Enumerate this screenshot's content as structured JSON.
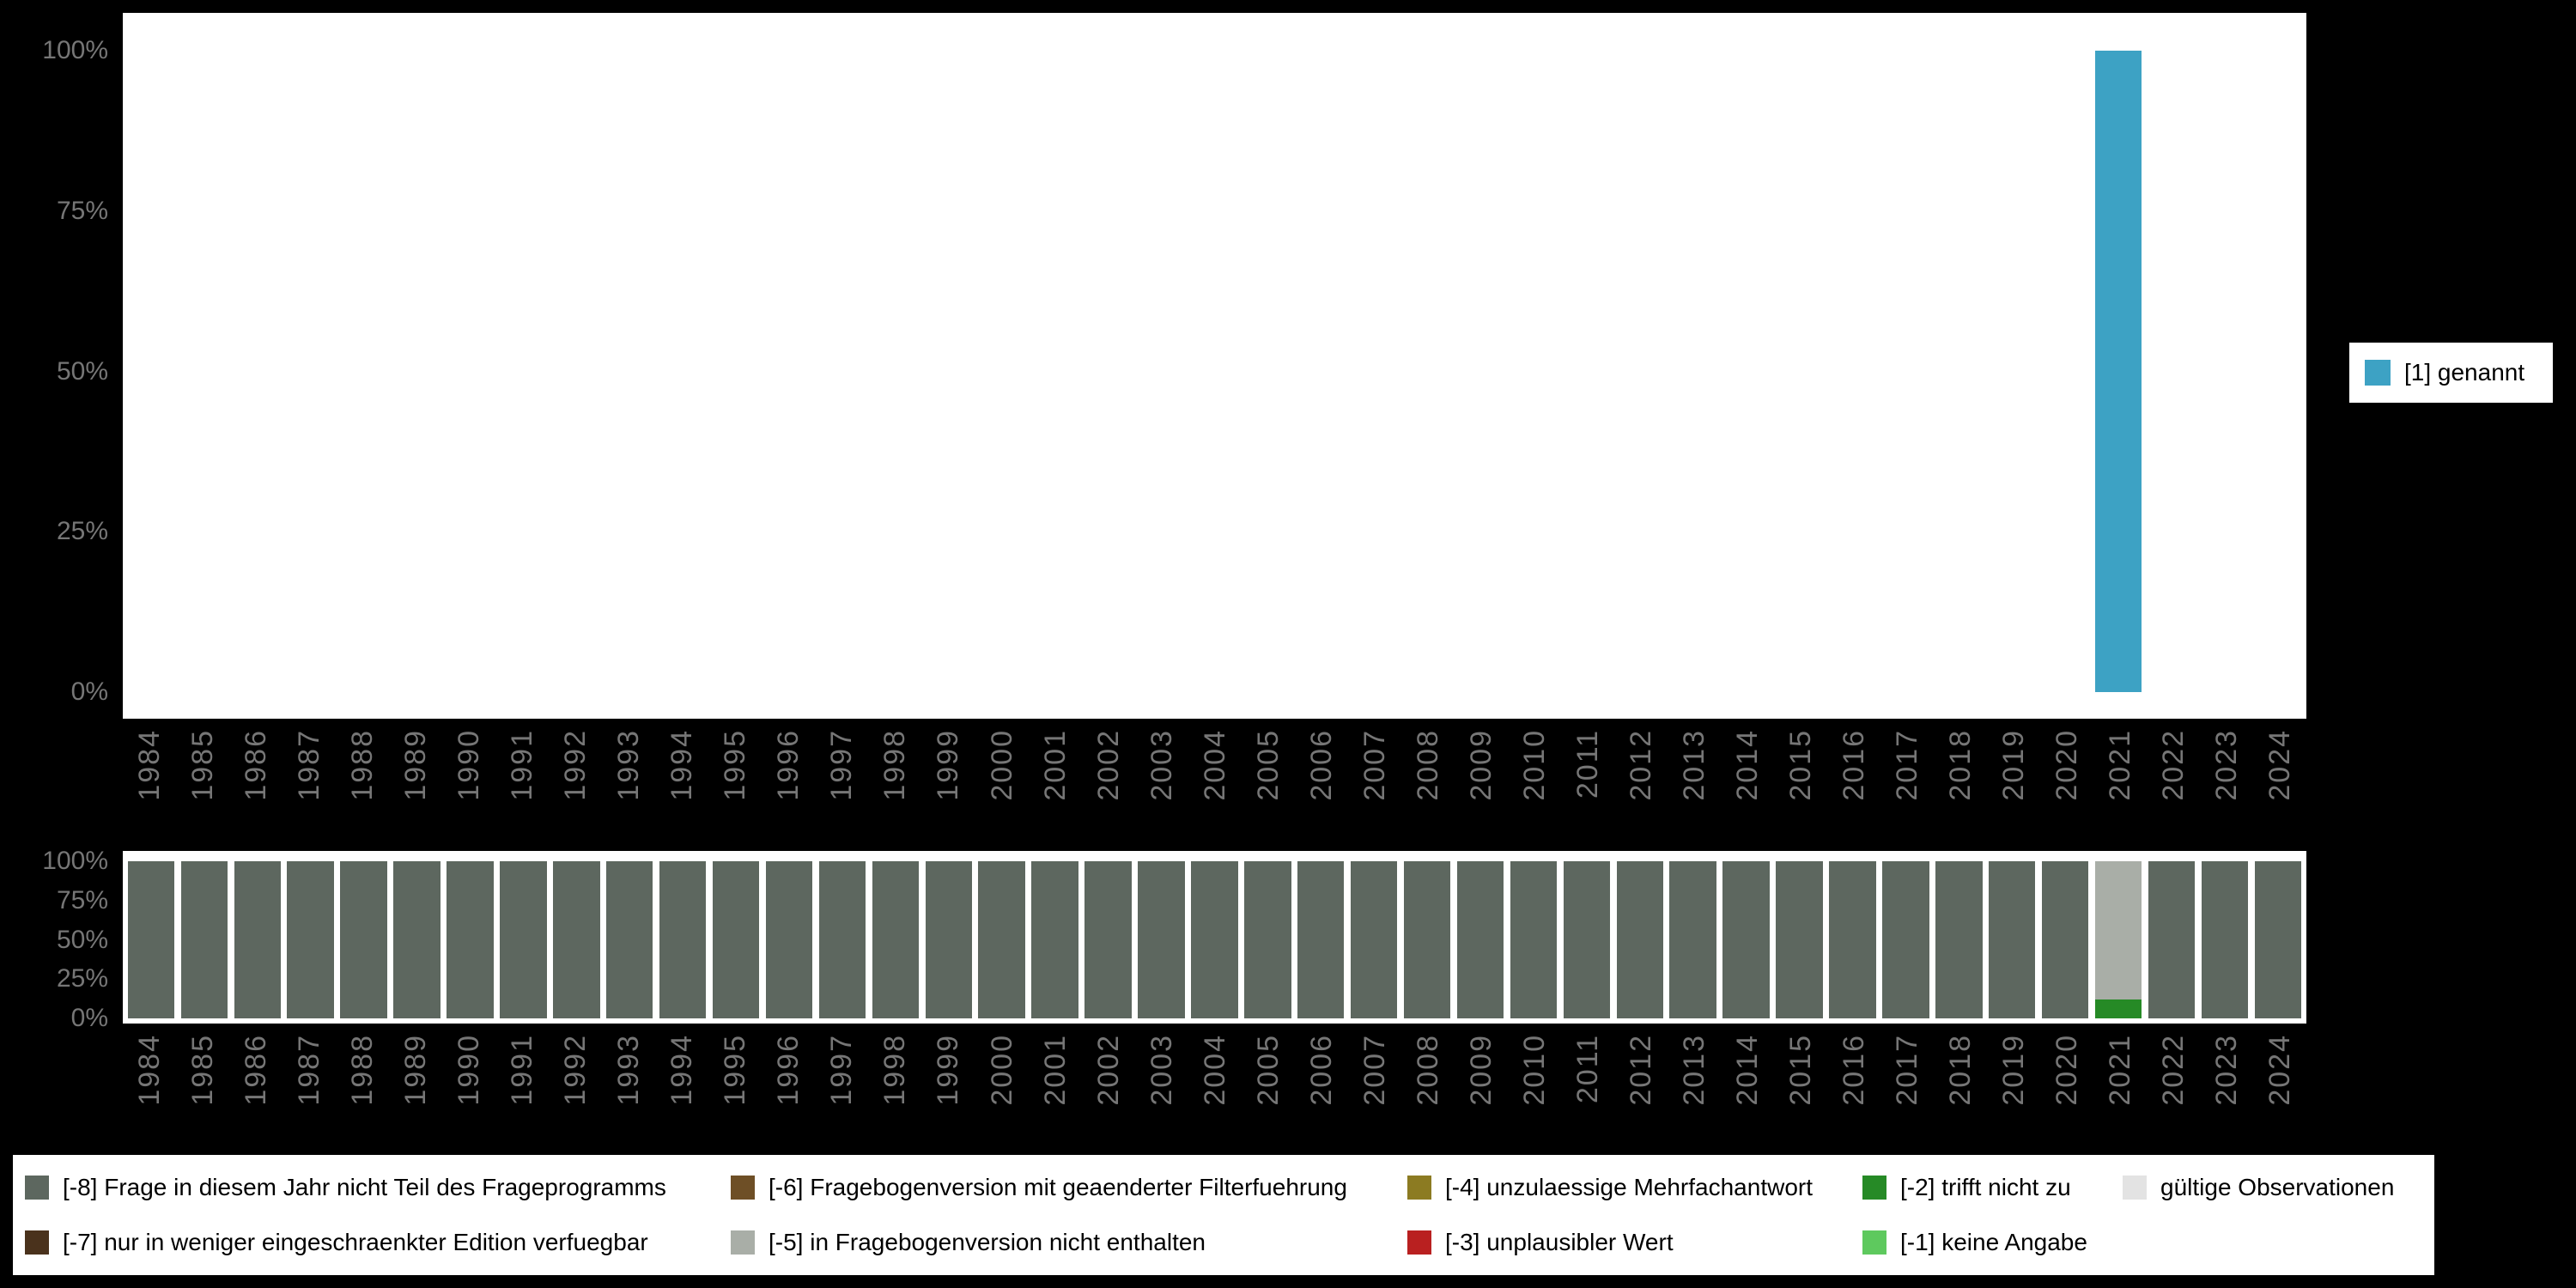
{
  "colors": {
    "background": "#000000",
    "panel_background": "#ffffff",
    "axis_text": "#767676",
    "bar_teal": "#3da2c4"
  },
  "chart_data": [
    {
      "type": "bar",
      "title": "",
      "xlabel": "",
      "ylabel": "",
      "ylim": [
        0,
        100
      ],
      "grid": false,
      "legend_position": "right",
      "yticks": [
        "100%",
        "75%",
        "50%",
        "25%",
        "0%"
      ],
      "categories": [
        "1984",
        "1985",
        "1986",
        "1987",
        "1988",
        "1989",
        "1990",
        "1991",
        "1992",
        "1993",
        "1994",
        "1995",
        "1996",
        "1997",
        "1998",
        "1999",
        "2000",
        "2001",
        "2002",
        "2003",
        "2004",
        "2005",
        "2006",
        "2007",
        "2008",
        "2009",
        "2010",
        "2011",
        "2012",
        "2013",
        "2014",
        "2015",
        "2016",
        "2017",
        "2018",
        "2019",
        "2020",
        "2021",
        "2022",
        "2023",
        "2024"
      ],
      "series": [
        {
          "name": "[1] genannt",
          "color": "#3da2c4",
          "values": [
            0,
            0,
            0,
            0,
            0,
            0,
            0,
            0,
            0,
            0,
            0,
            0,
            0,
            0,
            0,
            0,
            0,
            0,
            0,
            0,
            0,
            0,
            0,
            0,
            0,
            0,
            0,
            0,
            0,
            0,
            0,
            0,
            0,
            0,
            0,
            0,
            0,
            100,
            0,
            0,
            0
          ]
        }
      ]
    },
    {
      "type": "stacked-bar",
      "title": "",
      "xlabel": "",
      "ylabel": "",
      "ylim": [
        0,
        100
      ],
      "grid": false,
      "legend_position": "bottom",
      "yticks": [
        "100%",
        "75%",
        "50%",
        "25%",
        "0%"
      ],
      "categories": [
        "1984",
        "1985",
        "1986",
        "1987",
        "1988",
        "1989",
        "1990",
        "1991",
        "1992",
        "1993",
        "1994",
        "1995",
        "1996",
        "1997",
        "1998",
        "1999",
        "2000",
        "2001",
        "2002",
        "2003",
        "2004",
        "2005",
        "2006",
        "2007",
        "2008",
        "2009",
        "2010",
        "2011",
        "2012",
        "2013",
        "2014",
        "2015",
        "2016",
        "2017",
        "2018",
        "2019",
        "2020",
        "2021",
        "2022",
        "2023",
        "2024"
      ],
      "series": [
        {
          "name": "[-8] Frage in diesem Jahr nicht Teil des Frageprogramms",
          "color": "#5d675f",
          "values": [
            100,
            100,
            100,
            100,
            100,
            100,
            100,
            100,
            100,
            100,
            100,
            100,
            100,
            100,
            100,
            100,
            100,
            100,
            100,
            100,
            100,
            100,
            100,
            100,
            100,
            100,
            100,
            100,
            100,
            100,
            100,
            100,
            100,
            100,
            100,
            100,
            100,
            0,
            100,
            100,
            100
          ]
        },
        {
          "name": "[-5] in Fragebogenversion nicht enthalten",
          "color": "#a9aea7",
          "values": [
            0,
            0,
            0,
            0,
            0,
            0,
            0,
            0,
            0,
            0,
            0,
            0,
            0,
            0,
            0,
            0,
            0,
            0,
            0,
            0,
            0,
            0,
            0,
            0,
            0,
            0,
            0,
            0,
            0,
            0,
            0,
            0,
            0,
            0,
            0,
            0,
            0,
            88,
            0,
            0,
            0
          ]
        },
        {
          "name": "[-2] trifft nicht zu",
          "color": "#268a26",
          "values": [
            0,
            0,
            0,
            0,
            0,
            0,
            0,
            0,
            0,
            0,
            0,
            0,
            0,
            0,
            0,
            0,
            0,
            0,
            0,
            0,
            0,
            0,
            0,
            0,
            0,
            0,
            0,
            0,
            0,
            0,
            0,
            0,
            0,
            0,
            0,
            0,
            0,
            12,
            0,
            0,
            0
          ]
        }
      ]
    }
  ],
  "legend_right": {
    "label": "[1] genannt",
    "color": "#3da2c4"
  },
  "legend_bottom": {
    "items": [
      {
        "label": "[-8] Frage in diesem Jahr nicht Teil des Frageprogramms",
        "color": "#5d675f"
      },
      {
        "label": "[-7] nur in weniger eingeschraenkter Edition verfuegbar",
        "color": "#4a321c"
      },
      {
        "label": "[-6] Fragebogenversion mit geaenderter Filterfuehrung",
        "color": "#6e4f26"
      },
      {
        "label": "[-5] in Fragebogenversion nicht enthalten",
        "color": "#a9aea7"
      },
      {
        "label": "[-4] unzulaessige Mehrfachantwort",
        "color": "#8c7b22"
      },
      {
        "label": "[-3] unplausibler Wert",
        "color": "#b92020"
      },
      {
        "label": "[-2] trifft nicht zu",
        "color": "#268a26"
      },
      {
        "label": "[-1] keine Angabe",
        "color": "#5ec95e"
      },
      {
        "label": "gültige Observationen",
        "color": "#e3e3e3"
      }
    ]
  }
}
